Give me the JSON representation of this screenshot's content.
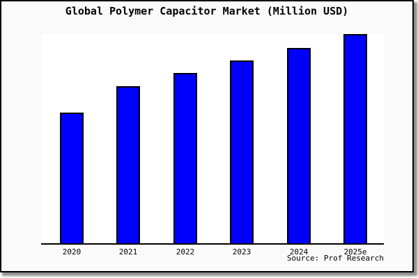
{
  "figure": {
    "background_color": "#fafafa",
    "plot_background_color": "#ffffff",
    "frame_border_color": "#000000",
    "source_note": "Source: Prof Research"
  },
  "chart_data": {
    "type": "bar",
    "title": "Global Polymer Capacitor Market (Million USD)",
    "categories": [
      "2020",
      "2021",
      "2022",
      "2023",
      "2024",
      "2025e"
    ],
    "values": [
      62.5,
      75.1,
      81.4,
      87.4,
      93.4,
      100
    ],
    "value_scale": "relative-percent-of-2025e-bar (no y-axis tick labels visible in chart)",
    "xlabel": "",
    "ylabel": "",
    "ylim": [
      0,
      100
    ],
    "grid": false,
    "legend": null,
    "y_axis_visible": false,
    "x_axis_line": true,
    "bar_color": "#0000ff",
    "bar_edge_color": "#000000",
    "annotation": "Source: Prof Research"
  }
}
